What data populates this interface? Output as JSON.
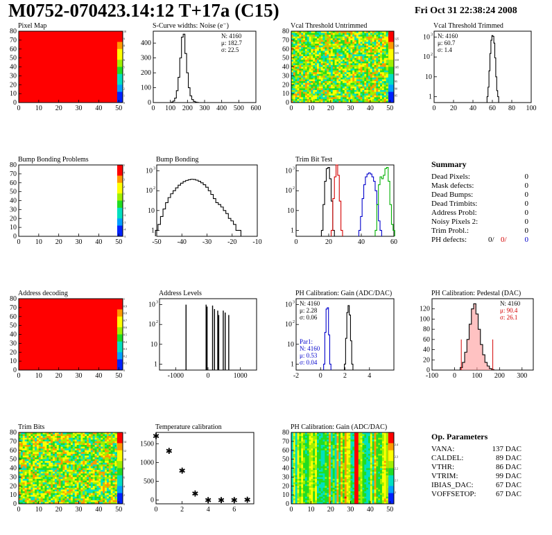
{
  "header": {
    "title": "M0752-070423.14:12 T+17a (C15)",
    "date": "Fri Oct 31 22:38:24 2008"
  },
  "colors": {
    "line_black": "#000000",
    "line_red": "#d40000",
    "line_blue": "#0000cc",
    "line_green": "#00b000",
    "map_red": "#ff0000",
    "stats_red": "#d40000",
    "stats_blue": "#0000cc"
  },
  "chart_data": [
    {
      "id": "pixel-map",
      "type": "heatmap",
      "title": "Pixel Map",
      "xlim": [
        0,
        52
      ],
      "ylim": [
        0,
        80
      ],
      "xticks": [
        0,
        10,
        20,
        30,
        40,
        50
      ],
      "yticks": [
        0,
        10,
        20,
        30,
        40,
        50,
        60,
        70,
        80
      ],
      "palette": "solid-red",
      "zlim": [
        0,
        10
      ],
      "zticks": [
        0,
        1,
        2,
        3,
        4,
        5,
        6,
        7,
        8,
        9,
        10
      ]
    },
    {
      "id": "scurve-widths",
      "type": "line",
      "title": "S-Curve widths: Noise (e⁻)",
      "xlim": [
        0,
        600
      ],
      "ylim": [
        0,
        480
      ],
      "xticks": [
        0,
        100,
        200,
        300,
        400,
        500,
        600
      ],
      "yticks": [
        0,
        100,
        200,
        300,
        400
      ],
      "stats": [
        {
          "text": "N: 4160"
        },
        {
          "text": "μ: 182.7"
        },
        {
          "text": "σ: 22.5"
        }
      ],
      "series": [
        {
          "color": "black",
          "step": true,
          "x": [
            110,
            120,
            130,
            140,
            150,
            160,
            170,
            180,
            190,
            200,
            210,
            220,
            230,
            240,
            250,
            260,
            270
          ],
          "y": [
            3,
            10,
            30,
            80,
            170,
            300,
            440,
            460,
            330,
            200,
            100,
            45,
            20,
            8,
            3,
            1,
            0
          ]
        }
      ]
    },
    {
      "id": "vcal-untrimmed",
      "type": "heatmap",
      "title": "Vcal Threshold Untrimmed",
      "xlim": [
        0,
        52
      ],
      "ylim": [
        0,
        80
      ],
      "xticks": [
        0,
        10,
        20,
        30,
        40,
        50
      ],
      "yticks": [
        0,
        10,
        20,
        30,
        40,
        50,
        60,
        70,
        80
      ],
      "palette": "rainbow-mid",
      "zlim": [
        80,
        130
      ],
      "zticks": [
        85,
        90,
        95,
        100,
        105,
        110,
        115,
        120,
        125
      ]
    },
    {
      "id": "vcal-trimmed",
      "type": "line",
      "title": "Vcal Threshold Trimmed",
      "log": true,
      "xlim": [
        0,
        100
      ],
      "ylim": [
        0.5,
        2000
      ],
      "xticks": [
        0,
        20,
        40,
        60,
        80,
        100
      ],
      "yticks": [
        1,
        10,
        100,
        1000
      ],
      "stats": [
        {
          "text": "N: 4160"
        },
        {
          "text": "μ: 60.7"
        },
        {
          "text": "σ: 1.4"
        }
      ],
      "series": [
        {
          "color": "black",
          "step": true,
          "x": [
            55,
            56,
            57,
            58,
            59,
            60,
            61,
            62,
            63,
            64,
            65,
            66
          ],
          "y": [
            1,
            3,
            20,
            150,
            700,
            1200,
            1100,
            500,
            90,
            10,
            2,
            1
          ]
        }
      ]
    },
    {
      "id": "bump-bonding-problems",
      "type": "heatmap",
      "title": "Bump Bonding Problems",
      "xlim": [
        0,
        52
      ],
      "ylim": [
        0,
        80
      ],
      "xticks": [
        0,
        10,
        20,
        30,
        40,
        50
      ],
      "yticks": [
        0,
        10,
        20,
        30,
        40,
        50,
        60,
        70,
        80
      ],
      "palette": "empty",
      "zlim": [
        -5,
        5
      ],
      "zticks": [
        -5,
        -4,
        -3,
        -2,
        -1,
        0,
        1,
        2,
        3,
        4,
        5
      ]
    },
    {
      "id": "bump-bonding",
      "type": "line",
      "title": "Bump Bonding",
      "log": true,
      "xlim": [
        -50,
        -10
      ],
      "ylim": [
        0.5,
        2000
      ],
      "xticks": [
        -50,
        -40,
        -30,
        -20,
        -10
      ],
      "yticks": [
        1,
        10,
        100,
        1000
      ],
      "series": [
        {
          "color": "black",
          "step": true,
          "x": [
            -50,
            -49,
            -48,
            -47,
            -46,
            -45,
            -44,
            -43,
            -42,
            -41,
            -40,
            -39,
            -38,
            -37,
            -36,
            -35,
            -34,
            -33,
            -32,
            -31,
            -30,
            -29,
            -28,
            -27,
            -26,
            -25,
            -24,
            -23,
            -22,
            -21,
            -20,
            -19,
            -18,
            -17,
            -16
          ],
          "y": [
            1,
            2,
            5,
            12,
            25,
            45,
            70,
            100,
            140,
            190,
            240,
            290,
            330,
            360,
            380,
            370,
            340,
            300,
            250,
            200,
            150,
            100,
            65,
            40,
            25,
            20,
            15,
            10,
            7,
            4,
            3,
            2,
            1,
            1,
            0.5
          ]
        }
      ]
    },
    {
      "id": "trim-bit-test",
      "type": "line",
      "title": "Trim Bit Test",
      "log": true,
      "xlim": [
        0,
        60
      ],
      "ylim": [
        0.5,
        2000
      ],
      "xticks": [
        0,
        20,
        40,
        60
      ],
      "yticks": [
        1,
        10,
        100,
        1000
      ],
      "series": [
        {
          "color": "black",
          "step": true,
          "x": [
            16,
            17,
            18,
            19,
            20,
            21,
            22,
            23
          ],
          "y": [
            1,
            20,
            300,
            1300,
            1500,
            400,
            30,
            1
          ]
        },
        {
          "color": "red",
          "step": true,
          "x": [
            22,
            23,
            24,
            25,
            26,
            27,
            28
          ],
          "y": [
            1,
            40,
            500,
            2000,
            600,
            30,
            1
          ]
        },
        {
          "color": "blue",
          "step": true,
          "x": [
            39,
            40,
            41,
            42,
            43,
            44,
            45,
            46,
            47,
            48,
            49,
            50,
            51,
            52
          ],
          "y": [
            1,
            5,
            40,
            200,
            500,
            700,
            800,
            700,
            500,
            300,
            100,
            20,
            3,
            1
          ]
        },
        {
          "color": "green",
          "step": true,
          "x": [
            49,
            50,
            51,
            52,
            53,
            54,
            55,
            56,
            57,
            58,
            59,
            60
          ],
          "y": [
            1,
            20,
            200,
            500,
            400,
            600,
            1300,
            1500,
            300,
            20,
            2,
            1
          ]
        }
      ]
    },
    {
      "id": "address-decoding",
      "type": "heatmap",
      "title": "Address decoding",
      "xlim": [
        0,
        52
      ],
      "ylim": [
        0,
        80
      ],
      "xticks": [
        0,
        10,
        20,
        30,
        40,
        50
      ],
      "yticks": [
        0,
        10,
        20,
        30,
        40,
        50,
        60,
        70,
        80
      ],
      "palette": "solid-red",
      "zlim": [
        0,
        1
      ],
      "zticks": [
        0,
        0.1,
        0.2,
        0.3,
        0.4,
        0.5,
        0.6,
        0.7,
        0.8,
        0.9,
        1
      ]
    },
    {
      "id": "address-levels",
      "type": "line",
      "title": "Address Levels",
      "log": true,
      "xlim": [
        -1500,
        1500
      ],
      "ylim": [
        0.5,
        2000
      ],
      "xticks": [
        -1000,
        0,
        1000
      ],
      "yticks": [
        1,
        10,
        100,
        1000
      ],
      "series": [
        {
          "color": "black",
          "spikes": true,
          "x": [
            -680,
            -60,
            -30,
            140,
            200,
            300,
            330,
            470,
            530,
            640
          ],
          "y": [
            1000,
            1000,
            800,
            900,
            600,
            500,
            300,
            500,
            400,
            300
          ]
        }
      ]
    },
    {
      "id": "ph-gain",
      "type": "line",
      "title": "PH Calibration: Gain (ADC/DAC)",
      "log": true,
      "xlim": [
        -2,
        6
      ],
      "ylim": [
        0.5,
        2000
      ],
      "xticks": [
        -2,
        0,
        2,
        4
      ],
      "yticks": [
        1,
        10,
        100,
        1000
      ],
      "stats": [
        {
          "text": "N: 4160"
        },
        {
          "text": "μ: 2.28"
        },
        {
          "text": "σ: 0.06"
        }
      ],
      "stats2": [
        {
          "text": "Par1:"
        },
        {
          "text": "N: 4160"
        },
        {
          "text": "μ: 0.53"
        },
        {
          "text": "σ: 0.04"
        }
      ],
      "series": [
        {
          "color": "black",
          "step": true,
          "x": [
            2.0,
            2.1,
            2.2,
            2.3,
            2.4,
            2.5,
            2.6
          ],
          "y": [
            1,
            20,
            400,
            900,
            300,
            15,
            1
          ]
        },
        {
          "color": "blue",
          "step": true,
          "x": [
            0.3,
            0.4,
            0.5,
            0.6,
            0.7,
            0.8
          ],
          "y": [
            1,
            40,
            600,
            700,
            30,
            1
          ]
        }
      ]
    },
    {
      "id": "ph-pedestal",
      "type": "line",
      "title": "PH Calibration: Pedestal (DAC)",
      "xlim": [
        -100,
        350
      ],
      "ylim": [
        0,
        140
      ],
      "xticks": [
        -100,
        0,
        100,
        200,
        300
      ],
      "yticks": [
        0,
        20,
        40,
        60,
        80,
        100,
        120
      ],
      "stats": [
        {
          "text": "N: 4160"
        },
        {
          "text": "μ: 90.4",
          "color": "red"
        },
        {
          "text": "σ: 26.1",
          "color": "red"
        }
      ],
      "series": [
        {
          "color": "black",
          "step": true,
          "fill": "hatch-red",
          "x": [
            20,
            30,
            40,
            50,
            60,
            70,
            80,
            90,
            100,
            110,
            120,
            130,
            140,
            150,
            160,
            170,
            180
          ],
          "y": [
            0,
            5,
            15,
            35,
            60,
            90,
            120,
            130,
            110,
            80,
            50,
            30,
            15,
            8,
            3,
            1,
            0
          ]
        }
      ],
      "markers": [
        30,
        170
      ]
    },
    {
      "id": "trim-bits",
      "type": "heatmap",
      "title": "Trim Bits",
      "xlim": [
        0,
        52
      ],
      "ylim": [
        0,
        80
      ],
      "xticks": [
        0,
        10,
        20,
        30,
        40,
        50
      ],
      "yticks": [
        0,
        10,
        20,
        30,
        40,
        50,
        60,
        70,
        80
      ],
      "palette": "rainbow-mid",
      "zlim": [
        0,
        16
      ],
      "zticks": [
        0,
        2,
        4,
        6,
        8,
        10,
        12,
        14,
        16
      ]
    },
    {
      "id": "temperature-calibration",
      "type": "scatter",
      "title": "Temperature calibration",
      "xlim": [
        0,
        7.5
      ],
      "ylim": [
        -100,
        1800
      ],
      "xticks": [
        0,
        2,
        4,
        6
      ],
      "yticks": [
        0,
        500,
        1000,
        1500
      ],
      "series": [
        {
          "color": "black",
          "marker": "star",
          "x": [
            0,
            1,
            2,
            3,
            4,
            5,
            6,
            7
          ],
          "y": [
            1700,
            1300,
            780,
            170,
            -10,
            -10,
            -10,
            0
          ]
        }
      ]
    },
    {
      "id": "ph-gain-map",
      "type": "heatmap",
      "title": "PH Calibration: Gain (ADC/DAC)",
      "xlim": [
        0,
        52
      ],
      "ylim": [
        0,
        80
      ],
      "xticks": [
        0,
        10,
        20,
        30,
        40,
        50
      ],
      "yticks": [
        0,
        10,
        20,
        30,
        40,
        50,
        60,
        70,
        80
      ],
      "palette": "stripes",
      "zlim": [
        1.9,
        2.5
      ],
      "zticks": [
        2,
        2.1,
        2.2,
        2.3,
        2.4
      ]
    }
  ],
  "summary": {
    "title": "Summary",
    "rows": [
      {
        "label": "Dead Pixels:",
        "value": "0"
      },
      {
        "label": "Mask defects:",
        "value": "0"
      },
      {
        "label": "Dead Bumps:",
        "value": "0"
      },
      {
        "label": "Dead Trimbits:",
        "value": "0"
      },
      {
        "label": "Address Probl:",
        "value": "0"
      },
      {
        "label": "Noisy Pixels 2:",
        "value": "0"
      },
      {
        "label": "Trim Probl.:",
        "value": "0"
      }
    ],
    "ph_defects": {
      "label": "PH defects:",
      "v1": "0/",
      "v2": "0/",
      "v3": "0"
    }
  },
  "op_parameters": {
    "title": "Op. Parameters",
    "rows": [
      {
        "label": "VANA:",
        "value": "137 DAC"
      },
      {
        "label": "CALDEL:",
        "value": "89 DAC"
      },
      {
        "label": "VTHR:",
        "value": "86 DAC"
      },
      {
        "label": "VTRIM:",
        "value": "99 DAC"
      },
      {
        "label": "IBIAS_DAC:",
        "value": "67 DAC"
      },
      {
        "label": "VOFFSETOP:",
        "value": "67 DAC"
      }
    ]
  }
}
